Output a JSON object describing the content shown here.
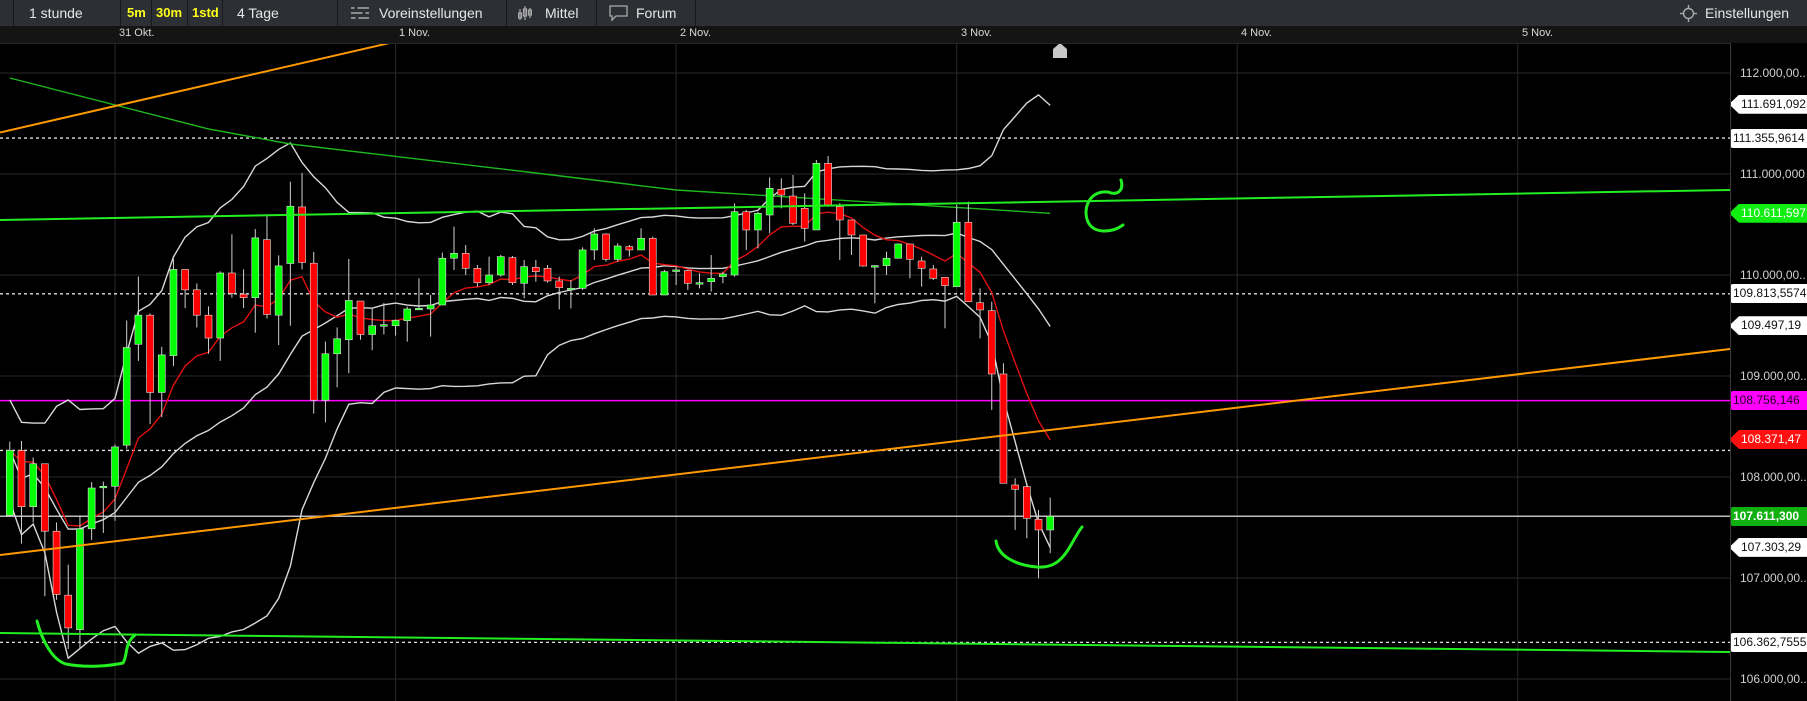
{
  "toolbar": {
    "interval_label": "1 stunde",
    "quick_intervals": [
      "5m",
      "30m",
      "1std"
    ],
    "range_label": "4 Tage",
    "presets_label": "Voreinstellungen",
    "indicators_label": "Mittel",
    "forum_label": "Forum",
    "settings_label": "Einstellungen",
    "icons": {
      "presets": "sliders-icon",
      "indicators": "candlestick-icon",
      "forum": "speech-bubble-icon",
      "settings": "gear-icon"
    }
  },
  "colors": {
    "background": "#000000",
    "up": "#00ff00",
    "down": "#ff0000",
    "bands": "#d8d8d8",
    "ema": "#e01010",
    "long_ma": "#1fb81f",
    "trend_orange": "#ff9900",
    "trend_green": "#22ee22",
    "magenta": "#ff00ff",
    "grid": "#2a2a2a"
  },
  "chart_data": {
    "type": "candlestick",
    "interval": "1 stunde",
    "first_candle": "30 Okt 15:00",
    "date_ticks": [
      "31 Okt.",
      "1 Nov.",
      "2 Nov.",
      "3 Nov.",
      "4 Nov.",
      "5 Nov."
    ],
    "y_ticks": [
      {
        "value": 112000,
        "label": "112.000,00.."
      },
      {
        "value": 111000,
        "label": "111.000,000"
      },
      {
        "value": 110000,
        "label": "110.000,00.."
      },
      {
        "value": 109000,
        "label": "109.000,00.."
      },
      {
        "value": 108000,
        "label": "108.000,00.."
      },
      {
        "value": 107000,
        "label": "107.000,00.."
      },
      {
        "value": 106000,
        "label": "106.000,00.."
      }
    ],
    "ylim": [
      105770,
      112270
    ],
    "grid": true,
    "candles_ohlc": [
      [
        107620,
        108350,
        107620,
        108263
      ],
      [
        108263,
        108357,
        107341,
        107706
      ],
      [
        107706,
        108193,
        107550,
        108131
      ],
      [
        108131,
        108131,
        106819,
        107463
      ],
      [
        107463,
        107550,
        106784,
        106837
      ],
      [
        106830,
        107132,
        106297,
        106506
      ],
      [
        106489,
        107620,
        106297,
        107487
      ],
      [
        107487,
        107950,
        107376,
        107891
      ],
      [
        107900,
        107955,
        107446,
        107908
      ],
      [
        107908,
        108322,
        107567,
        108298
      ],
      [
        108315,
        109550,
        108280,
        109282
      ],
      [
        109314,
        109985,
        109150,
        109602
      ],
      [
        109602,
        109620,
        108524,
        108837
      ],
      [
        108837,
        109289,
        108593,
        109209
      ],
      [
        109202,
        110159,
        109098,
        110055
      ],
      [
        110055,
        110055,
        109672,
        109853
      ],
      [
        109853,
        109916,
        109481,
        109602
      ],
      [
        109602,
        109689,
        109220,
        109376
      ],
      [
        109376,
        110037,
        109150,
        110020
      ],
      [
        110020,
        110403,
        109776,
        109818
      ],
      [
        109811,
        110055,
        109672,
        109776
      ],
      [
        109776,
        110455,
        109428,
        110368
      ],
      [
        110350,
        110594,
        109568,
        109609
      ],
      [
        109602,
        110194,
        109307,
        110090
      ],
      [
        110114,
        110924,
        109498,
        110681
      ],
      [
        110674,
        111011,
        110055,
        110124
      ],
      [
        110117,
        110229,
        108628,
        108760
      ],
      [
        108760,
        109341,
        108541,
        109220
      ],
      [
        109220,
        109481,
        108889,
        109369
      ],
      [
        109359,
        110159,
        109028,
        109748
      ],
      [
        109742,
        109742,
        109359,
        109411
      ],
      [
        109411,
        109672,
        109255,
        109498
      ],
      [
        109505,
        109724,
        109411,
        109508
      ],
      [
        109498,
        109560,
        109400,
        109550
      ],
      [
        109548,
        109687,
        109340,
        109664
      ],
      [
        109668,
        109967,
        109654,
        109670
      ],
      [
        109664,
        109802,
        109390,
        109703
      ],
      [
        109703,
        110222,
        109703,
        110166
      ],
      [
        110166,
        110479,
        110050,
        110215
      ],
      [
        110215,
        110297,
        110000,
        110066
      ],
      [
        110066,
        110099,
        109885,
        109924
      ],
      [
        109924,
        110182,
        109901,
        110000
      ],
      [
        110000,
        110199,
        109984,
        110182
      ],
      [
        110172,
        110188,
        109901,
        109924
      ],
      [
        109918,
        110149,
        109769,
        110083
      ],
      [
        110076,
        110149,
        109934,
        110033
      ],
      [
        110066,
        110099,
        109924,
        109941
      ],
      [
        109941,
        109984,
        109660,
        109875
      ],
      [
        109866,
        109951,
        109670,
        109868
      ],
      [
        109868,
        110274,
        109852,
        110248
      ],
      [
        110248,
        110462,
        110149,
        110406
      ],
      [
        110406,
        110413,
        110132,
        110155
      ],
      [
        110155,
        110314,
        110132,
        110287
      ],
      [
        110281,
        110297,
        110182,
        110248
      ],
      [
        110248,
        110462,
        110248,
        110363
      ],
      [
        110363,
        110380,
        109802,
        109802
      ],
      [
        109802,
        110050,
        109802,
        110033
      ],
      [
        110048,
        110083,
        109901,
        110050
      ],
      [
        110043,
        110050,
        109852,
        109918
      ],
      [
        109922,
        110017,
        109868,
        109924
      ],
      [
        109934,
        110198,
        109835,
        109967
      ],
      [
        109984,
        110033,
        109918,
        110010
      ],
      [
        110000,
        110710,
        109984,
        110627
      ],
      [
        110627,
        110644,
        110248,
        110446
      ],
      [
        110446,
        110627,
        110264,
        110611
      ],
      [
        110594,
        110967,
        110413,
        110858
      ],
      [
        110848,
        110957,
        110660,
        110792
      ],
      [
        110782,
        110990,
        110495,
        110512
      ],
      [
        110660,
        110809,
        110330,
        110462
      ],
      [
        110446,
        111139,
        110446,
        111106
      ],
      [
        111106,
        111178,
        110677,
        110693
      ],
      [
        110677,
        110710,
        110149,
        110545
      ],
      [
        110545,
        110545,
        110198,
        110396
      ],
      [
        110396,
        110396,
        110083,
        110089
      ],
      [
        110091,
        110099,
        109720,
        110093
      ],
      [
        110093,
        110231,
        110000,
        110166
      ],
      [
        110166,
        110314,
        110166,
        110307
      ],
      [
        110307,
        110307,
        109967,
        110155
      ],
      [
        110139,
        110182,
        109885,
        110066
      ],
      [
        110060,
        110099,
        109951,
        109967
      ],
      [
        109977,
        109977,
        109472,
        109895
      ],
      [
        109885,
        110693,
        109885,
        110522
      ],
      [
        110522,
        110726,
        109736,
        109736
      ],
      [
        109726,
        109868,
        109373,
        109654
      ],
      [
        109647,
        109736,
        108664,
        109020
      ],
      [
        109020,
        109126,
        107938,
        107938
      ],
      [
        107921,
        107987,
        107476,
        107878
      ],
      [
        107905,
        107921,
        107393,
        107591
      ],
      [
        107581,
        107674,
        106997,
        107476
      ],
      [
        107476,
        107796,
        107245,
        107611
      ]
    ],
    "indicators": {
      "bollinger": {
        "period": 20,
        "stddev": 2
      },
      "ema_period": 9,
      "long_ma_points": [
        [
          "30 Okt 15:00",
          111950
        ],
        [
          "31 Okt 08:00",
          111446
        ],
        [
          "31 Okt 15:00",
          111297
        ],
        [
          "1 Nov 12:00",
          111010
        ],
        [
          "2 Nov 00:00",
          110842
        ],
        [
          "3 Nov 08:00",
          110611
        ]
      ]
    },
    "drawings": {
      "trendlines": [
        {
          "color": "trend_orange",
          "price_left": 111411,
          "price_right": 115346
        },
        {
          "color": "trend_orange",
          "price_left": 107228,
          "price_right": 109267
        },
        {
          "color": "trend_green",
          "price_left": 110545,
          "price_right": 110842
        },
        {
          "color": "trend_green",
          "price_left": 106455,
          "price_right": 106267
        }
      ],
      "horizontal_lines": [
        {
          "price": 108756.146,
          "style": "solid",
          "color": "magenta"
        },
        {
          "price": 107611.3,
          "style": "solid",
          "color": "#bdbdbd"
        },
        {
          "price": 111355.9614,
          "style": "dotted",
          "color": "#e0e0e0"
        },
        {
          "price": 109813.5574,
          "style": "dotted",
          "color": "#e0e0e0"
        },
        {
          "price": 108263,
          "style": "dotted",
          "color": "#e0e0e0"
        },
        {
          "price": 106362.7555,
          "style": "dotted",
          "color": "#e0e0e0"
        }
      ]
    },
    "price_tags": [
      {
        "price": 111691.092,
        "label": "111.691,092",
        "shape": "arrow",
        "bg": "#ffffff",
        "fg": "#111111"
      },
      {
        "price": 111355.9614,
        "label": "111.355,9614",
        "shape": "box",
        "bg": "#ffffff",
        "fg": "#111111"
      },
      {
        "price": 110611.597,
        "label": "110.611,597",
        "shape": "arrow",
        "bg": "#11ee11",
        "fg": "#ffffff"
      },
      {
        "price": 109813.5574,
        "label": "109.813,5574",
        "shape": "box",
        "bg": "#ffffff",
        "fg": "#111111"
      },
      {
        "price": 109497.19,
        "label": "109.497,19",
        "shape": "arrow",
        "bg": "#ffffff",
        "fg": "#111111"
      },
      {
        "price": 108756.146,
        "label": "108.756,146",
        "shape": "box",
        "bg": "#ff00ff",
        "fg": "#220022"
      },
      {
        "price": 108371.47,
        "label": "108.371,47",
        "shape": "arrow",
        "bg": "#ff1010",
        "fg": "#ffffff"
      },
      {
        "price": 107611.3,
        "label": "107.611,300",
        "shape": "box",
        "bg": "#10b010",
        "fg": "#ffffff",
        "bold": true
      },
      {
        "price": 107303.29,
        "label": "107.303,29",
        "shape": "arrow",
        "bg": "#ffffff",
        "fg": "#111111"
      },
      {
        "price": 106362.7555,
        "label": "106.362,7555",
        "shape": "box",
        "bg": "#ffffff",
        "fg": "#111111"
      }
    ]
  }
}
